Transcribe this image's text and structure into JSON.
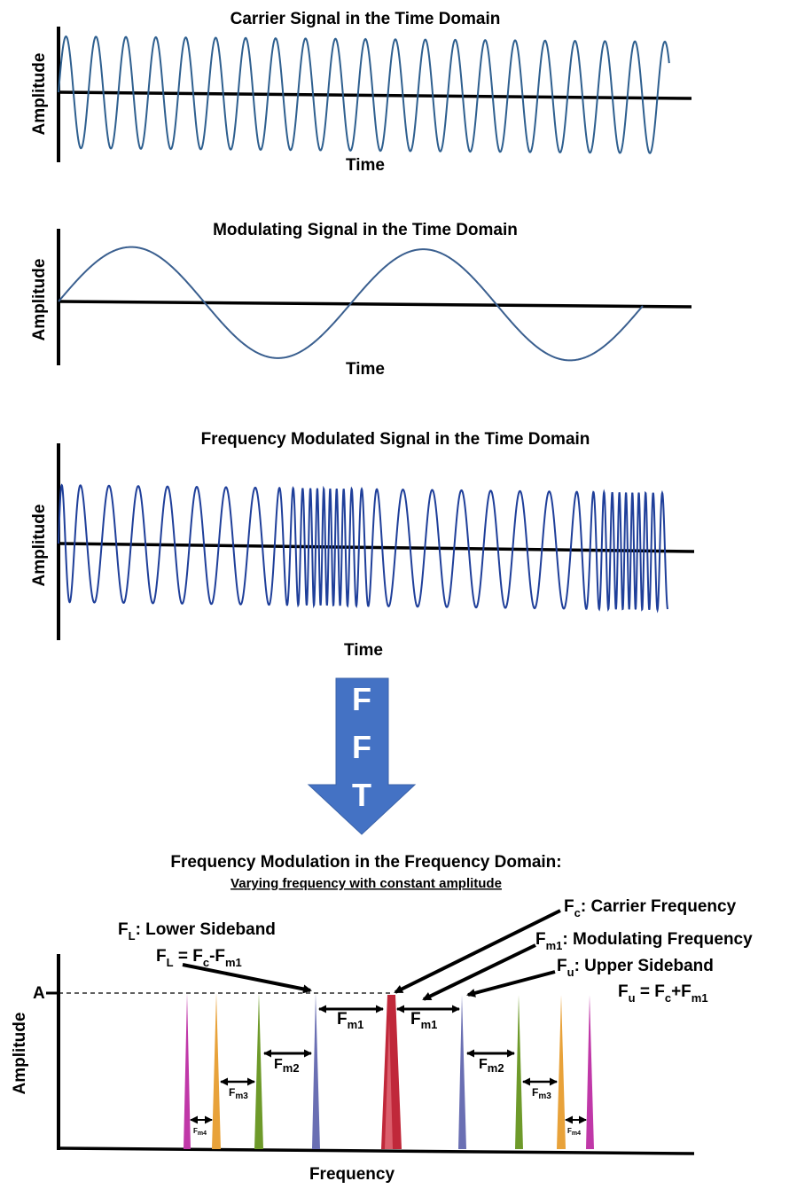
{
  "panels": [
    {
      "title": "Carrier Signal in the Time Domain",
      "ylabel": "Amplitude",
      "xlabel": "Time"
    },
    {
      "title": "Modulating Signal in the Time Domain",
      "ylabel": "Amplitude",
      "xlabel": "Time"
    },
    {
      "title": "Frequency Modulated Signal in the Time Domain",
      "ylabel": "Amplitude",
      "xlabel": "Time"
    }
  ],
  "fft": {
    "letters": [
      "F",
      "F",
      "T"
    ],
    "color": "#4472C4"
  },
  "spectrum": {
    "title": "Frequency Modulation in the Frequency Domain:",
    "subtitle": "Varying frequency with constant amplitude",
    "ylabel": "Amplitude",
    "xlabel": "Frequency",
    "a_tick": "A",
    "labels": {
      "fc": {
        "main": "F",
        "sub": "c",
        "rest": ": Carrier Frequency"
      },
      "fm1": {
        "main": "F",
        "sub": "m1",
        "rest": ": Modulating Frequency"
      },
      "fu": {
        "main": "F",
        "sub": "u",
        "rest": ": Upper Sideband"
      },
      "fu_eq": {
        "a": "F",
        "a_sub": "u",
        "b": " = F",
        "b_sub": "c",
        "c": "+F",
        "c_sub": "m1"
      },
      "fl": {
        "main": "F",
        "sub": "L",
        "rest": ": Lower Sideband"
      },
      "fl_eq": {
        "a": "F",
        "a_sub": "L",
        "b": " = F",
        "b_sub": "c",
        "c": "-F",
        "c_sub": "m1"
      }
    },
    "spacings": [
      {
        "main": "F",
        "sub": "m1"
      },
      {
        "main": "F",
        "sub": "m1"
      },
      {
        "main": "F",
        "sub": "m2"
      },
      {
        "main": "F",
        "sub": "m2"
      },
      {
        "main": "F",
        "sub": "m3"
      },
      {
        "main": "F",
        "sub": "m3"
      },
      {
        "main": "F",
        "sub": "m4"
      },
      {
        "main": "F",
        "sub": "m4"
      }
    ],
    "colors": {
      "carrier": "#C0283A",
      "first": "#6A6FB3",
      "second": "#6E9A2A",
      "third": "#E8A23A",
      "fourth": "#C038A8"
    }
  }
}
